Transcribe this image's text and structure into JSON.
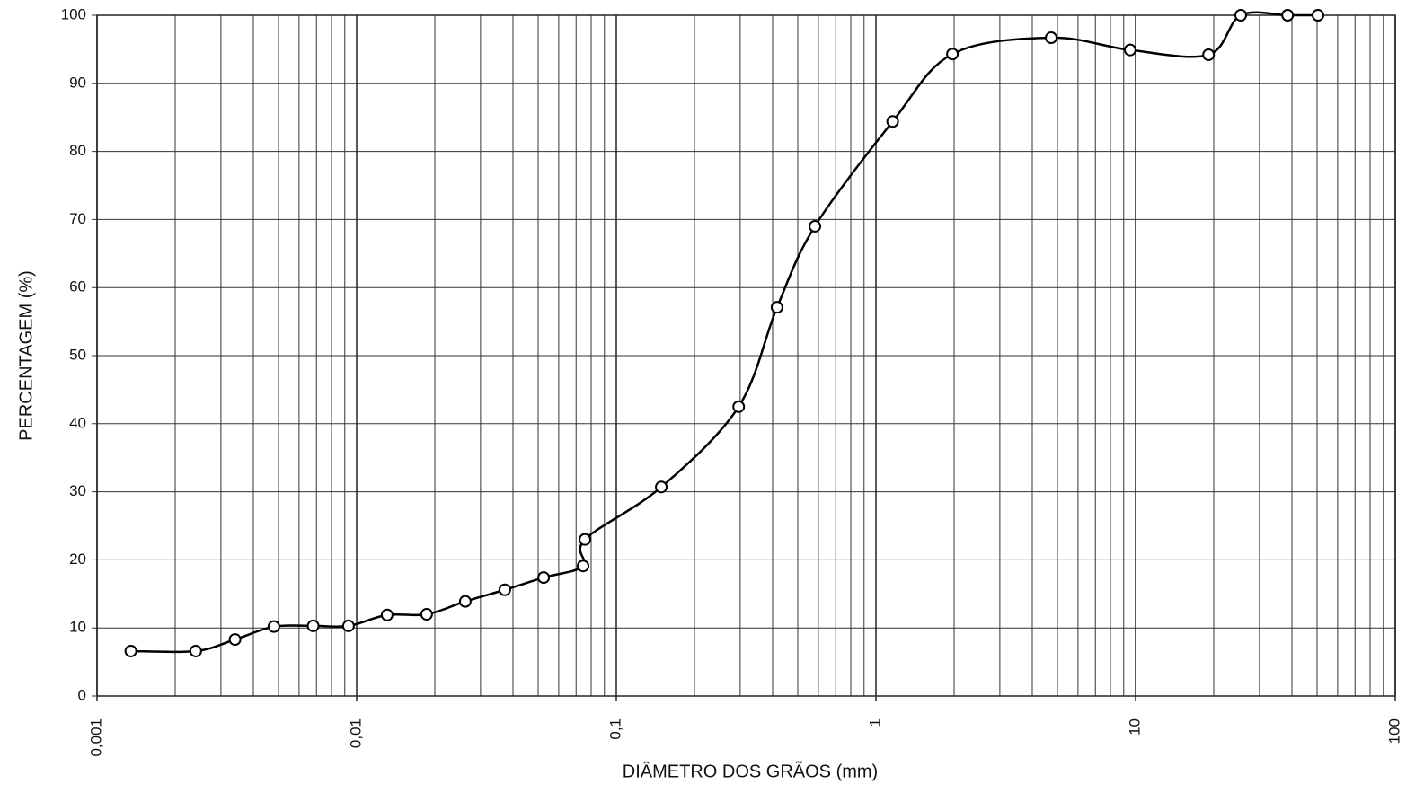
{
  "chart_data": {
    "type": "line",
    "x_label": "DIÂMETRO DOS GRÃOS (mm)",
    "y_label": "PERCENTAGEM (%)",
    "x_log": true,
    "grid": true,
    "color": "#000000",
    "xlim": [
      0.001,
      100
    ],
    "ylim": [
      0,
      100
    ],
    "xticks": [
      {
        "value": 0.001,
        "label": "0,001"
      },
      {
        "value": 0.01,
        "label": "0,01"
      },
      {
        "value": 0.1,
        "label": "0,1"
      },
      1,
      10,
      100
    ],
    "x_minor_grid": [
      0.002,
      0.003,
      0.004,
      0.005,
      0.006,
      0.007,
      0.008,
      0.009,
      0.02,
      0.03,
      0.04,
      0.05,
      0.06,
      0.07,
      0.08,
      0.09,
      0.2,
      0.3,
      0.4,
      0.5,
      0.6,
      0.7,
      0.8,
      0.9,
      2,
      3,
      4,
      5,
      6,
      7,
      8,
      9,
      20,
      30,
      40,
      50,
      60,
      70,
      80,
      90
    ],
    "yticks": [
      0,
      10,
      20,
      30,
      40,
      50,
      60,
      70,
      80,
      90,
      100
    ],
    "x": [
      0.00135,
      0.0024,
      0.0034,
      0.0048,
      0.0068,
      0.0093,
      0.0131,
      0.0186,
      0.0262,
      0.0372,
      0.0525,
      0.0745,
      0.0757,
      0.149,
      0.296,
      0.416,
      0.582,
      1.16,
      1.97,
      4.73,
      9.53,
      19.1,
      25.4,
      38.5,
      50.4
    ],
    "values": [
      6.6,
      6.6,
      8.3,
      10.2,
      10.3,
      10.3,
      11.9,
      12.0,
      13.9,
      15.6,
      17.4,
      19.1,
      23.0,
      30.7,
      42.5,
      57.1,
      69.0,
      84.4,
      94.3,
      96.7,
      94.9,
      94.2,
      100,
      100,
      100
    ]
  }
}
